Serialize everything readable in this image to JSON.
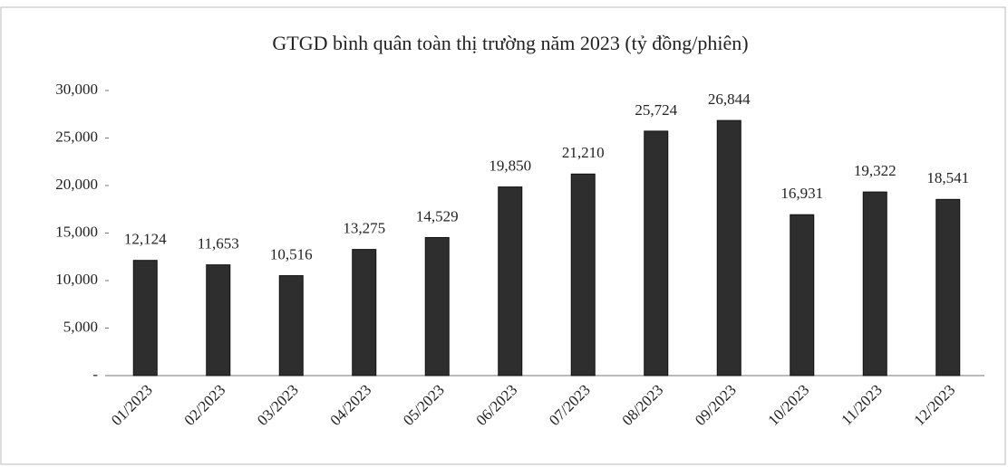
{
  "chart_data": {
    "type": "bar",
    "title": "GTGD bình quân toàn thị trường năm 2023 (tỷ đồng/phiên)",
    "categories": [
      "01/2023",
      "02/2023",
      "03/2023",
      "04/2023",
      "05/2023",
      "06/2023",
      "07/2023",
      "08/2023",
      "09/2023",
      "10/2023",
      "11/2023",
      "12/2023"
    ],
    "values": [
      12124,
      11653,
      10516,
      13275,
      14529,
      19850,
      21210,
      25724,
      26844,
      16931,
      19322,
      18541
    ],
    "value_labels": [
      "12,124",
      "11,653",
      "10,516",
      "13,275",
      "14,529",
      "19,850",
      "21,210",
      "25,724",
      "26,844",
      "16,931",
      "19,322",
      "18,541"
    ],
    "color": "#2e2e2e",
    "ylim": [
      0,
      30000
    ],
    "yticks": [
      {
        "value": 0,
        "label": "-"
      },
      {
        "value": 5000,
        "label": "5,000"
      },
      {
        "value": 10000,
        "label": "10,000"
      },
      {
        "value": 15000,
        "label": "15,000"
      },
      {
        "value": 20000,
        "label": "20,000"
      },
      {
        "value": 25000,
        "label": "25,000"
      },
      {
        "value": 30000,
        "label": "30,000"
      }
    ],
    "grid": false
  }
}
